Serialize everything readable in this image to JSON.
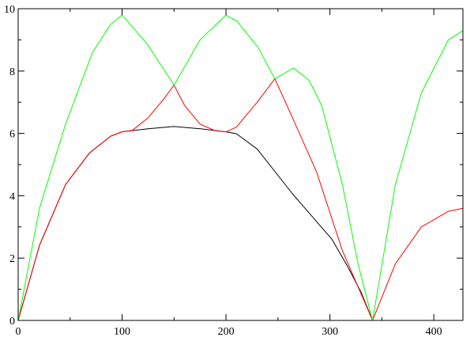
{
  "chart_data": {
    "type": "line",
    "title": "",
    "xlabel": "",
    "ylabel": "",
    "xlim": [
      0,
      428
    ],
    "ylim": [
      0,
      10
    ],
    "x_major_ticks": [
      0,
      100,
      200,
      300,
      400
    ],
    "x_minor_step": 50,
    "y_major_ticks": [
      0,
      2,
      4,
      6,
      8,
      10
    ],
    "y_minor_step": 1,
    "x_tick_labels": [
      "0",
      "100",
      "200",
      "300",
      "400"
    ],
    "y_tick_labels": [
      "0",
      "2",
      "4",
      "6",
      "8",
      "10"
    ],
    "grid": false,
    "series": [
      {
        "color": "#000000",
        "points": [
          [
            0,
            0
          ],
          [
            20.5,
            2.41
          ],
          [
            45.6,
            4.36
          ],
          [
            68.6,
            5.37
          ],
          [
            89,
            5.91
          ],
          [
            100,
            6.05
          ],
          [
            125,
            6.15
          ],
          [
            150,
            6.22
          ],
          [
            175,
            6.15
          ],
          [
            200,
            6.05
          ],
          [
            210,
            5.99
          ],
          [
            230,
            5.5
          ],
          [
            264,
            4.06
          ],
          [
            302,
            2.6
          ],
          [
            317,
            1.73
          ],
          [
            330,
            0.9
          ],
          [
            341,
            0
          ]
        ]
      },
      {
        "color": "#ff0000",
        "points": [
          [
            0,
            0
          ],
          [
            20.5,
            2.41
          ],
          [
            45.6,
            4.36
          ],
          [
            68.6,
            5.37
          ],
          [
            89,
            5.91
          ],
          [
            100,
            6.05
          ],
          [
            110,
            6.1
          ],
          [
            125,
            6.5
          ],
          [
            140,
            7.1
          ],
          [
            150,
            7.55
          ],
          [
            160,
            6.9
          ],
          [
            175,
            6.3
          ],
          [
            190,
            6.08
          ],
          [
            200,
            6.05
          ],
          [
            210,
            6.2
          ],
          [
            230,
            7.0
          ],
          [
            247,
            7.75
          ],
          [
            264,
            6.5
          ],
          [
            287,
            4.78
          ],
          [
            312,
            2.24
          ],
          [
            341,
            0
          ],
          [
            363,
            1.82
          ],
          [
            388,
            3.0
          ],
          [
            414,
            3.5
          ],
          [
            428,
            3.6
          ]
        ]
      },
      {
        "color": "#00ff00",
        "points": [
          [
            0,
            0
          ],
          [
            20.5,
            3.6
          ],
          [
            45.6,
            6.3
          ],
          [
            71.5,
            8.6
          ],
          [
            89,
            9.5
          ],
          [
            100,
            9.8
          ],
          [
            124.5,
            8.85
          ],
          [
            150,
            7.55
          ],
          [
            175,
            9.0
          ],
          [
            200,
            9.8
          ],
          [
            210.6,
            9.6
          ],
          [
            231,
            8.75
          ],
          [
            247,
            7.75
          ],
          [
            265,
            8.1
          ],
          [
            280,
            7.7
          ],
          [
            292,
            6.9
          ],
          [
            312,
            4.36
          ],
          [
            327,
            1.83
          ],
          [
            341,
            0
          ],
          [
            363,
            4.36
          ],
          [
            388,
            7.3
          ],
          [
            414,
            9.0
          ],
          [
            428,
            9.3
          ]
        ]
      }
    ]
  }
}
